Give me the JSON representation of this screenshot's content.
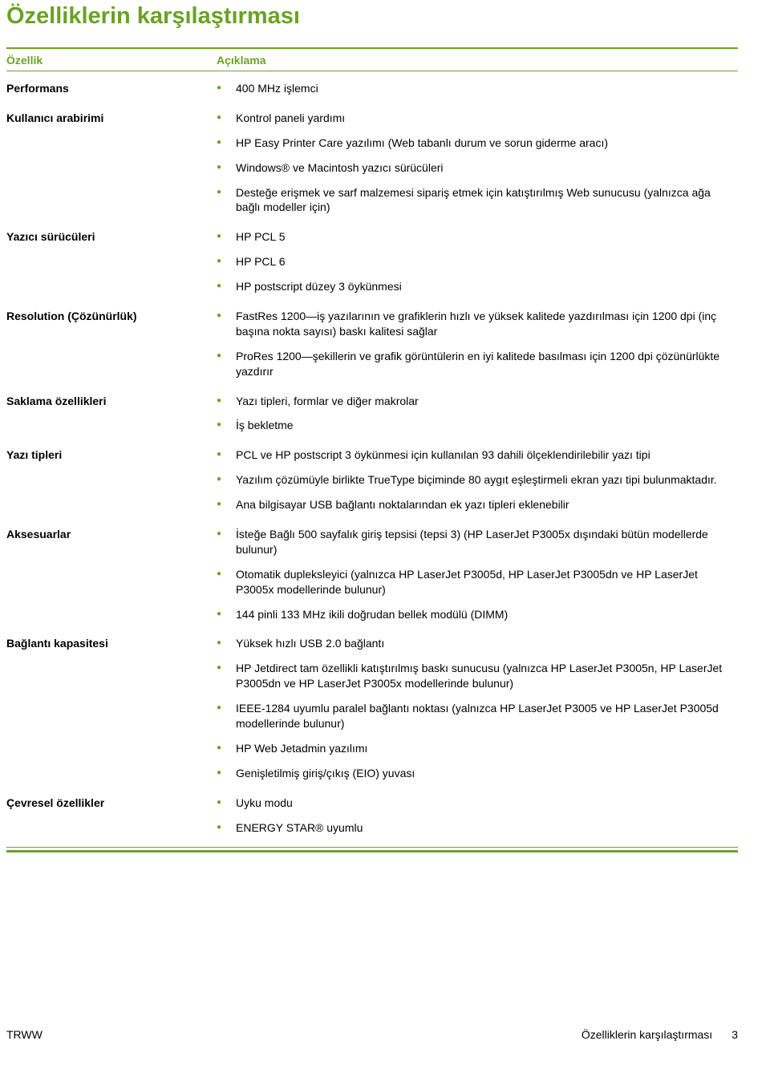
{
  "colors": {
    "accent": "#6aa224",
    "text": "#000000",
    "bullet": "#6aa224"
  },
  "title": "Özelliklerin karşılaştırması",
  "header": {
    "feature": "Özellik",
    "description": "Açıklama"
  },
  "rows": [
    {
      "label": "Performans",
      "text": "400 MHz işlemci",
      "first": true
    },
    {
      "label": "Kullanıcı arabirimi",
      "text": "Kontrol paneli yardımı",
      "first": true
    },
    {
      "label": "",
      "text": "HP Easy Printer Care yazılımı (Web tabanlı durum ve sorun giderme aracı)"
    },
    {
      "label": "",
      "text": "Windows® ve Macintosh yazıcı sürücüleri"
    },
    {
      "label": "",
      "text": "Desteğe erişmek ve sarf malzemesi sipariş etmek için katıştırılmış Web sunucusu (yalnızca ağa bağlı modeller için)"
    },
    {
      "label": "Yazıcı sürücüleri",
      "text": "HP PCL 5",
      "first": true
    },
    {
      "label": "",
      "text": "HP PCL 6"
    },
    {
      "label": "",
      "text": "HP postscript düzey 3 öykünmesi"
    },
    {
      "label": "Resolution (Çözünürlük)",
      "text": "FastRes 1200—iş yazılarının ve grafiklerin hızlı ve yüksek kalitede yazdırılması için 1200 dpi (inç başına nokta sayısı) baskı kalitesi sağlar",
      "first": true
    },
    {
      "label": "",
      "text": "ProRes 1200—şekillerin ve grafik görüntülerin en iyi kalitede basılması için 1200 dpi çözünürlükte yazdırır"
    },
    {
      "label": "Saklama özellikleri",
      "text": "Yazı tipleri, formlar ve diğer makrolar",
      "first": true
    },
    {
      "label": "",
      "text": "İş bekletme"
    },
    {
      "label": "Yazı tipleri",
      "text": "PCL ve HP postscript 3 öykünmesi için kullanılan 93 dahili ölçeklendirilebilir yazı tipi",
      "first": true
    },
    {
      "label": "",
      "text": "Yazılım çözümüyle birlikte TrueType biçiminde 80 aygıt eşleştirmeli ekran yazı tipi bulunmaktadır."
    },
    {
      "label": "",
      "text": "Ana bilgisayar USB bağlantı noktalarından ek yazı tipleri eklenebilir"
    },
    {
      "label": "Aksesuarlar",
      "text": "İsteğe Bağlı 500 sayfalık giriş tepsisi (tepsi 3) (HP LaserJet P3005x dışındaki bütün modellerde bulunur)",
      "first": true
    },
    {
      "label": "",
      "text": "Otomatik dupleksleyici (yalnızca HP LaserJet P3005d, HP LaserJet P3005dn ve HP LaserJet P3005x modellerinde bulunur)"
    },
    {
      "label": "",
      "text": "144 pinli 133 MHz ikili doğrudan bellek modülü (DIMM)"
    },
    {
      "label": "Bağlantı kapasitesi",
      "text": "Yüksek hızlı USB 2.0 bağlantı",
      "first": true
    },
    {
      "label": "",
      "text": "HP Jetdirect tam özellikli katıştırılmış baskı sunucusu (yalnızca HP LaserJet P3005n, HP LaserJet P3005dn ve HP LaserJet P3005x modellerinde bulunur)"
    },
    {
      "label": "",
      "text": "IEEE-1284 uyumlu paralel bağlantı noktası (yalnızca HP LaserJet P3005 ve HP LaserJet P3005d modellerinde bulunur)"
    },
    {
      "label": "",
      "text": "HP Web Jetadmin yazılımı"
    },
    {
      "label": "",
      "text": "Genişletilmiş giriş/çıkış (EIO) yuvası"
    },
    {
      "label": "Çevresel özellikler",
      "text": "Uyku modu",
      "first": true
    },
    {
      "label": "",
      "text": "ENERGY STAR® uyumlu"
    }
  ],
  "footer": {
    "left": "TRWW",
    "rightTitle": "Özelliklerin karşılaştırması",
    "pageNum": "3"
  }
}
